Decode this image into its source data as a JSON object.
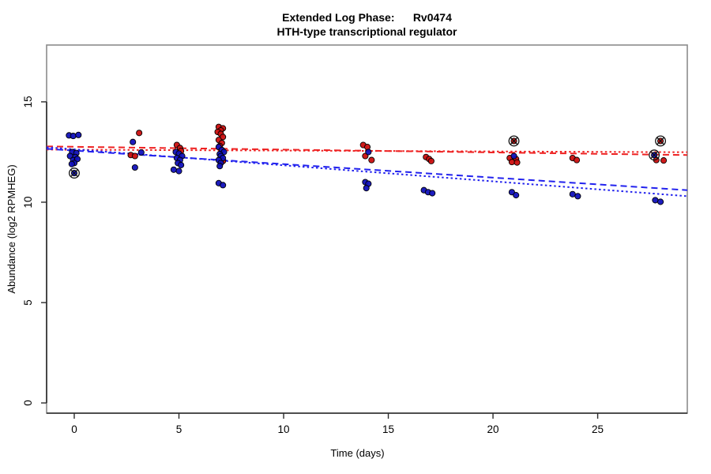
{
  "chart_data": {
    "type": "scatter",
    "title": "Extended Log Phase:      Rv0474",
    "subtitle": "HTH-type transcriptional regulator",
    "xlabel": "Time  (days)",
    "ylabel": "Abundance  (log2 RPMHEG)",
    "xlim": [
      -1.32,
      29.28
    ],
    "ylim": [
      -0.51,
      17.83
    ],
    "x_ticks": [
      0,
      5,
      10,
      15,
      20,
      25
    ],
    "y_ticks": [
      0,
      5,
      10,
      15
    ],
    "grid": false,
    "legend": "none",
    "colors": {
      "red_point": "#cc0f0f",
      "blue_point": "#1111bb",
      "red_line": "#ee2222",
      "blue_line": "#2222ee",
      "point_stroke": "#000000",
      "box_stroke": "#8c8c8c",
      "axis_stroke": "#2b2b2b",
      "marker_stroke": "#111111"
    },
    "series": [
      {
        "name": "red",
        "color": "#cc0f0f",
        "points": [
          [
            3.1,
            13.45
          ],
          [
            2.7,
            12.35
          ],
          [
            2.9,
            12.3
          ],
          [
            4.9,
            12.85
          ],
          [
            5.05,
            12.7
          ],
          [
            5.1,
            12.55
          ],
          [
            6.9,
            13.75
          ],
          [
            7.1,
            13.68
          ],
          [
            7.0,
            13.58
          ],
          [
            6.85,
            13.5
          ],
          [
            7.0,
            13.4
          ],
          [
            7.1,
            13.25
          ],
          [
            6.9,
            13.1
          ],
          [
            7.05,
            12.95
          ],
          [
            6.95,
            12.8
          ],
          [
            7.1,
            12.05
          ],
          [
            13.8,
            12.85
          ],
          [
            14.0,
            12.75
          ],
          [
            13.9,
            12.3
          ],
          [
            14.2,
            12.1
          ],
          [
            16.8,
            12.25
          ],
          [
            16.95,
            12.15
          ],
          [
            17.05,
            12.05
          ],
          [
            20.8,
            12.2
          ],
          [
            21.1,
            12.15
          ],
          [
            20.9,
            12.0
          ],
          [
            21.15,
            11.98
          ],
          [
            21.0,
            13.05
          ],
          [
            23.8,
            12.2
          ],
          [
            24.0,
            12.1
          ],
          [
            27.8,
            12.1
          ],
          [
            28.15,
            12.08
          ],
          [
            28.0,
            13.05
          ]
        ]
      },
      {
        "name": "blue",
        "color": "#1111bb",
        "points": [
          [
            -0.25,
            13.33
          ],
          [
            -0.05,
            13.3
          ],
          [
            0.2,
            13.35
          ],
          [
            -0.1,
            12.5
          ],
          [
            0.1,
            12.45
          ],
          [
            -0.2,
            12.3
          ],
          [
            0.05,
            12.25
          ],
          [
            -0.05,
            12.1
          ],
          [
            0.15,
            12.15
          ],
          [
            0.0,
            11.95
          ],
          [
            -0.12,
            11.9
          ],
          [
            0.0,
            11.45
          ],
          [
            2.8,
            13.0
          ],
          [
            3.2,
            12.48
          ],
          [
            2.9,
            11.73
          ],
          [
            4.85,
            12.5
          ],
          [
            5.0,
            12.42
          ],
          [
            5.15,
            12.3
          ],
          [
            4.9,
            12.2
          ],
          [
            5.05,
            12.1
          ],
          [
            4.95,
            11.95
          ],
          [
            5.1,
            11.85
          ],
          [
            4.75,
            11.62
          ],
          [
            5.0,
            11.55
          ],
          [
            6.9,
            12.75
          ],
          [
            7.05,
            12.6
          ],
          [
            7.15,
            12.5
          ],
          [
            6.95,
            12.4
          ],
          [
            7.0,
            12.3
          ],
          [
            7.1,
            12.2
          ],
          [
            6.9,
            12.1
          ],
          [
            7.0,
            11.95
          ],
          [
            6.95,
            11.8
          ],
          [
            6.9,
            10.95
          ],
          [
            7.1,
            10.85
          ],
          [
            14.05,
            12.5
          ],
          [
            13.9,
            11.0
          ],
          [
            14.05,
            10.92
          ],
          [
            13.95,
            10.7
          ],
          [
            16.7,
            10.6
          ],
          [
            16.9,
            10.5
          ],
          [
            17.1,
            10.45
          ],
          [
            21.0,
            12.3
          ],
          [
            20.9,
            10.5
          ],
          [
            21.1,
            10.35
          ],
          [
            23.8,
            10.4
          ],
          [
            24.05,
            10.3
          ],
          [
            27.75,
            10.1
          ],
          [
            28.0,
            10.02
          ],
          [
            27.7,
            12.35
          ]
        ]
      }
    ],
    "outlier_markers": [
      {
        "series": "blue",
        "t": 0.0,
        "v": 11.45
      },
      {
        "series": "red",
        "t": 21.0,
        "v": 13.05
      },
      {
        "series": "red",
        "t": 28.0,
        "v": 13.05
      },
      {
        "series": "blue",
        "t": 27.7,
        "v": 12.35
      }
    ],
    "trendlines": [
      {
        "name": "red-longdash",
        "color": "#ee2222",
        "style": "longdash",
        "from": [
          -1.32,
          12.78
        ],
        "to": [
          29.28,
          12.35
        ]
      },
      {
        "name": "red-dotted",
        "color": "#ee2222",
        "style": "dotted",
        "from": [
          -1.32,
          12.62
        ],
        "to": [
          29.28,
          12.49
        ]
      },
      {
        "name": "blue-longdash",
        "color": "#2222ee",
        "style": "longdash",
        "from": [
          -1.32,
          12.66
        ],
        "to": [
          29.28,
          10.6
        ]
      },
      {
        "name": "blue-dotted",
        "color": "#2222ee",
        "style": "dotted",
        "from": [
          -1.32,
          12.74
        ],
        "to": [
          29.28,
          10.3
        ]
      }
    ]
  }
}
